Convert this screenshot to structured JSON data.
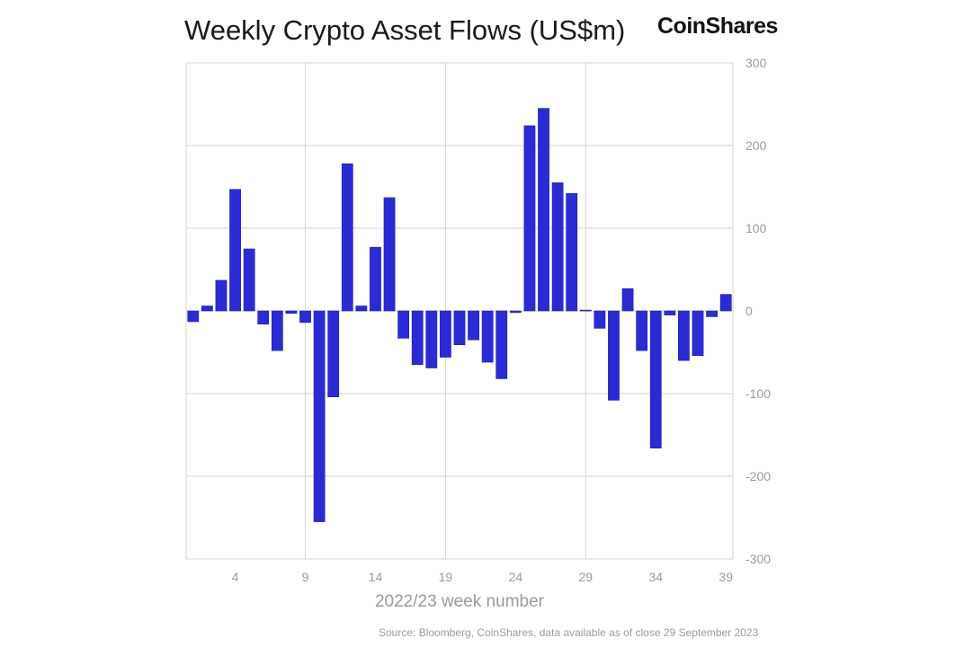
{
  "chart_data": {
    "type": "bar",
    "title": "Weekly Crypto Asset Flows (US$m)",
    "xlabel": "2022/23 week number",
    "ylabel": "",
    "x": [
      1,
      2,
      3,
      4,
      5,
      6,
      7,
      8,
      9,
      10,
      11,
      12,
      13,
      14,
      15,
      16,
      17,
      18,
      19,
      20,
      21,
      22,
      23,
      24,
      25,
      26,
      27,
      28,
      29,
      30,
      31,
      32,
      33,
      34,
      35,
      36,
      37,
      38,
      39
    ],
    "values": [
      -13,
      6,
      37,
      147,
      75,
      -16,
      -48,
      -3,
      -14,
      -255,
      -104,
      178,
      6,
      77,
      137,
      -33,
      -65,
      -69,
      -56,
      -41,
      -35,
      -62,
      -82,
      -2,
      224,
      245,
      155,
      142,
      1,
      -21,
      -108,
      27,
      -48,
      -166,
      -5,
      -60,
      -54,
      -7,
      20
    ],
    "x_ticks": [
      "4",
      "9",
      "14",
      "19",
      "24",
      "29",
      "34",
      "39"
    ],
    "x_tick_values": [
      4,
      9,
      14,
      19,
      24,
      29,
      34,
      39
    ],
    "y_ticks": [
      "300",
      "200",
      "100",
      "0",
      "-100",
      "-200",
      "-300"
    ],
    "y_tick_values": [
      300,
      200,
      100,
      0,
      -100,
      -200,
      -300
    ],
    "ylim": [
      -300,
      300
    ],
    "y_axis_side": "right",
    "grid": true,
    "bar_color": "#2b2bd6",
    "grid_color": "#d3d3d3"
  },
  "brand": {
    "logo_text": "CoinShares"
  },
  "source": "Source: Bloomberg, CoinShares, data available as of close 29 September 2023"
}
